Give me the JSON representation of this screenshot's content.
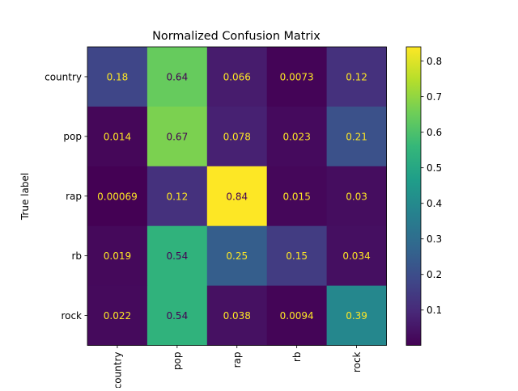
{
  "chart_data": {
    "type": "heatmap",
    "title": "Normalized Confusion Matrix",
    "ylabel": "True label",
    "xlabel": "",
    "x_categories": [
      "country",
      "pop",
      "rap",
      "rb",
      "rock"
    ],
    "y_categories": [
      "country",
      "pop",
      "rap",
      "rb",
      "rock"
    ],
    "values": [
      [
        0.18,
        0.64,
        0.066,
        0.0073,
        0.12
      ],
      [
        0.014,
        0.67,
        0.078,
        0.023,
        0.21
      ],
      [
        0.00069,
        0.12,
        0.84,
        0.015,
        0.03
      ],
      [
        0.019,
        0.54,
        0.25,
        0.15,
        0.034
      ],
      [
        0.022,
        0.54,
        0.038,
        0.0094,
        0.39
      ]
    ],
    "cell_labels": [
      [
        "0.18",
        "0.64",
        "0.066",
        "0.0073",
        "0.12"
      ],
      [
        "0.014",
        "0.67",
        "0.078",
        "0.023",
        "0.21"
      ],
      [
        "0.00069",
        "0.12",
        "0.84",
        "0.015",
        "0.03"
      ],
      [
        "0.019",
        "0.54",
        "0.25",
        "0.15",
        "0.034"
      ],
      [
        "0.022",
        "0.54",
        "0.038",
        "0.0094",
        "0.39"
      ]
    ],
    "colormap": "viridis",
    "color_range": [
      0.00069,
      0.84
    ],
    "colorbar_ticks": [
      0.1,
      0.2,
      0.3,
      0.4,
      0.5,
      0.6,
      0.7,
      0.8
    ],
    "colorbar_tick_labels": [
      "0.1",
      "0.2",
      "0.3",
      "0.4",
      "0.5",
      "0.6",
      "0.7",
      "0.8"
    ],
    "text_color_dark": "#440154",
    "text_color_light": "#fde725",
    "grid": false
  }
}
